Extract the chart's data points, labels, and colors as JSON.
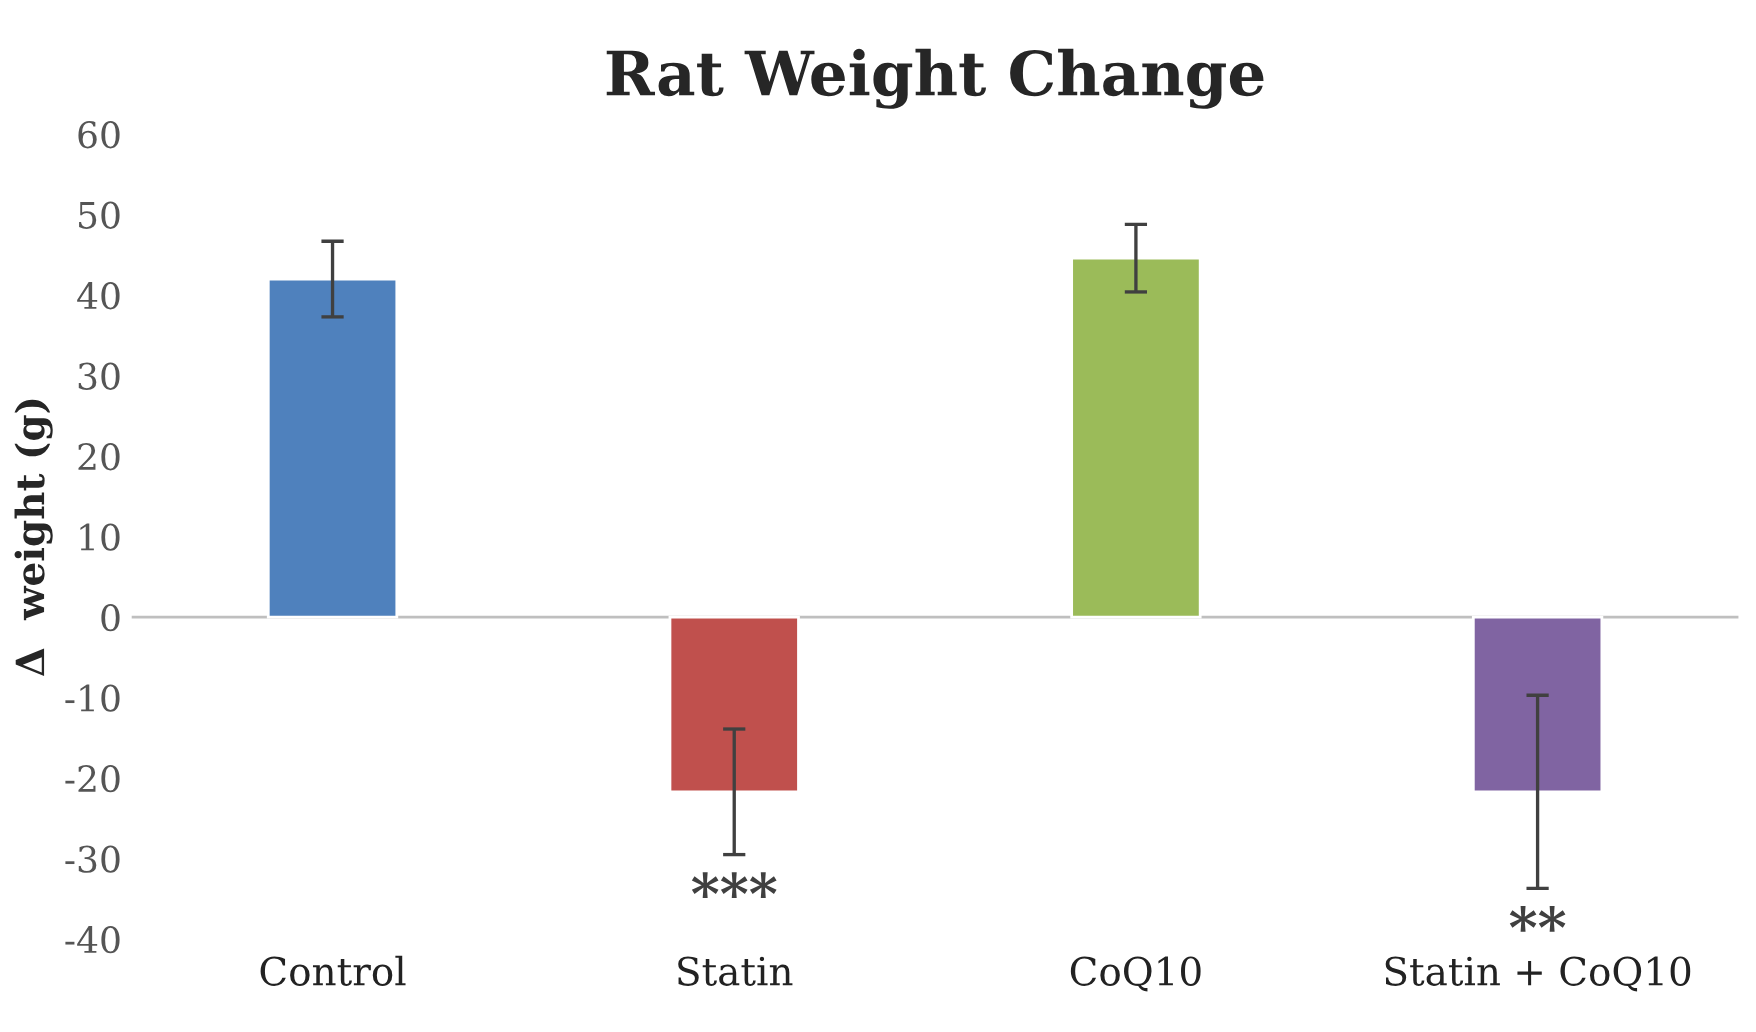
{
  "chart_data": {
    "type": "bar",
    "title": "Rat Weight Change",
    "ylabel": "Δ  weight (g)",
    "categories": [
      "Control",
      "Statin",
      "CoQ10",
      "Statin + CoQ10"
    ],
    "values": [
      42,
      -21.7,
      44.6,
      -21.7
    ],
    "colors": [
      "#4f81bd",
      "#c0504d",
      "#9bbb59",
      "#8064a2"
    ],
    "errors": [
      4.7,
      7.8,
      4.2,
      12
    ],
    "ylim": [
      -40,
      60
    ],
    "yticks": [
      -40,
      -30,
      -20,
      -10,
      0,
      10,
      20,
      30,
      40,
      50,
      60
    ],
    "annotations": [
      "***",
      "**"
    ],
    "legend": false
  }
}
